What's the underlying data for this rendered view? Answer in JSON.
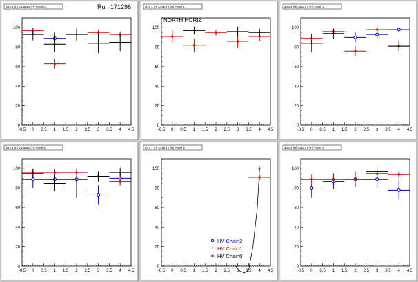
{
  "page": {
    "run_label": "Run 171296",
    "panel_label": "NORTH HORIZ"
  },
  "legend": [
    {
      "name": "HV Chain2",
      "color": "#0000cc",
      "marker": "circle"
    },
    {
      "name": "HV Chain1",
      "color": "#dd0000",
      "marker": "star"
    },
    {
      "name": "HV Chain0",
      "color": "#000000",
      "marker": "plus"
    }
  ],
  "chart_data": [
    {
      "type": "scatter",
      "title": "dcm 1 (H) Octant 0 (H) Panel 0",
      "xlim": [
        -0.5,
        4.5
      ],
      "ylim": [
        0,
        110
      ],
      "xticks": [
        "-0.5",
        "0",
        "0.5",
        "1",
        "1.5",
        "2",
        "2.5",
        "3",
        "3.5",
        "4",
        "4.5"
      ],
      "yticks": [
        "0",
        "20",
        "40",
        "60",
        "80",
        "100"
      ],
      "series": [
        {
          "key": "chain2",
          "points": [
            {
              "x": 1,
              "y": 89,
              "ex": 0.5,
              "ey": 6
            }
          ]
        },
        {
          "key": "chain1",
          "points": [
            {
              "x": 0,
              "y": 97,
              "ex": 0.5,
              "ey": 3
            },
            {
              "x": 1,
              "y": 63,
              "ex": 0.5,
              "ey": 5
            },
            {
              "x": 3,
              "y": 95,
              "ex": 0.5,
              "ey": 3
            },
            {
              "x": 4,
              "y": 93,
              "ex": 0.5,
              "ey": 3
            }
          ]
        },
        {
          "key": "chain0",
          "points": [
            {
              "x": 0,
              "y": 93,
              "ex": 0.5,
              "ey": 6
            },
            {
              "x": 1,
              "y": 83,
              "ex": 0.5,
              "ey": 8
            },
            {
              "x": 2,
              "y": 93,
              "ex": 0.5,
              "ey": 6
            },
            {
              "x": 3,
              "y": 84,
              "ex": 0.5,
              "ey": 10
            },
            {
              "x": 4,
              "y": 85,
              "ex": 0.5,
              "ey": 9
            }
          ]
        }
      ]
    },
    {
      "type": "scatter",
      "title": "dcm 1 (H) Octant 0 (H) Panel 1",
      "xlim": [
        -0.5,
        4.5
      ],
      "ylim": [
        0,
        110
      ],
      "xticks": [
        "-0.5",
        "0",
        "0.5",
        "1",
        "1.5",
        "2",
        "2.5",
        "3",
        "3.5",
        "4",
        "4.5"
      ],
      "yticks": [
        "0",
        "20",
        "40",
        "60",
        "80",
        "100"
      ],
      "series": [
        {
          "key": "chain2",
          "points": []
        },
        {
          "key": "chain1",
          "points": [
            {
              "x": 0,
              "y": 91,
              "ex": 0.5,
              "ey": 6
            },
            {
              "x": 1,
              "y": 82,
              "ex": 0.5,
              "ey": 7
            },
            {
              "x": 2,
              "y": 95,
              "ex": 0.5,
              "ey": 3
            },
            {
              "x": 3,
              "y": 86,
              "ex": 0.5,
              "ey": 7
            },
            {
              "x": 4,
              "y": 91,
              "ex": 0.5,
              "ey": 5
            }
          ]
        },
        {
          "key": "chain0",
          "points": [
            {
              "x": 1,
              "y": 97,
              "ex": 0.5,
              "ey": 4
            },
            {
              "x": 3,
              "y": 96,
              "ex": 0.5,
              "ey": 5
            },
            {
              "x": 4,
              "y": 95,
              "ex": 0.5,
              "ey": 4
            }
          ]
        }
      ]
    },
    {
      "type": "scatter",
      "title": "dcm 1 (H) Octant 0 (H) Panel 2",
      "xlim": [
        -0.5,
        4.5
      ],
      "ylim": [
        0,
        110
      ],
      "xticks": [
        "-0.5",
        "0",
        "0.5",
        "1",
        "1.5",
        "2",
        "2.5",
        "3",
        "3.5",
        "4",
        "4.5"
      ],
      "yticks": [
        "0",
        "20",
        "40",
        "60",
        "80",
        "100"
      ],
      "series": [
        {
          "key": "chain2",
          "points": [
            {
              "x": 2,
              "y": 90,
              "ex": 0.5,
              "ey": 5
            },
            {
              "x": 3,
              "y": 93,
              "ex": 0.5,
              "ey": 5
            },
            {
              "x": 4,
              "y": 98,
              "ex": 0.5,
              "ey": 2
            }
          ]
        },
        {
          "key": "chain1",
          "points": [
            {
              "x": 0,
              "y": 89,
              "ex": 0.5,
              "ey": 5
            },
            {
              "x": 1,
              "y": 96,
              "ex": 0.5,
              "ey": 3
            },
            {
              "x": 2,
              "y": 76,
              "ex": 0.5,
              "ey": 5
            },
            {
              "x": 3,
              "y": 98,
              "ex": 0.5,
              "ey": 3
            },
            {
              "x": 4,
              "y": 81,
              "ex": 0.5,
              "ey": 4
            }
          ]
        },
        {
          "key": "chain0",
          "points": [
            {
              "x": 0,
              "y": 84,
              "ex": 0.5,
              "ey": 9
            },
            {
              "x": 1,
              "y": 94,
              "ex": 0.5,
              "ey": 5
            },
            {
              "x": 4,
              "y": 81,
              "ex": 0.5,
              "ey": 5
            }
          ]
        }
      ]
    },
    {
      "type": "scatter",
      "title": "dcm 1 (H) Octant 0 (H) Panel 3",
      "xlim": [
        -0.5,
        4.5
      ],
      "ylim": [
        0,
        110
      ],
      "xticks": [
        "-0.5",
        "0",
        "0.5",
        "1",
        "1.5",
        "2",
        "2.5",
        "3",
        "3.5",
        "4",
        "4.5"
      ],
      "yticks": [
        "0",
        "20",
        "40",
        "60",
        "80",
        "100"
      ],
      "series": [
        {
          "key": "chain2",
          "points": [
            {
              "x": 0,
              "y": 89,
              "ex": 0.5,
              "ey": 9
            },
            {
              "x": 1,
              "y": 89,
              "ex": 0.5,
              "ey": 8
            },
            {
              "x": 2,
              "y": 89,
              "ex": 0.5,
              "ey": 8
            },
            {
              "x": 3,
              "y": 73,
              "ex": 0.5,
              "ey": 10
            },
            {
              "x": 4,
              "y": 90,
              "ex": 0.5,
              "ey": 7
            }
          ]
        },
        {
          "key": "chain1",
          "points": [
            {
              "x": 0,
              "y": 96,
              "ex": 0.5,
              "ey": 4
            },
            {
              "x": 1,
              "y": 96,
              "ex": 0.5,
              "ey": 4
            },
            {
              "x": 2,
              "y": 96,
              "ex": 0.5,
              "ey": 4
            },
            {
              "x": 3,
              "y": 92,
              "ex": 0.5,
              "ey": 5
            },
            {
              "x": 4,
              "y": 87,
              "ex": 0.5,
              "ey": 4
            }
          ]
        },
        {
          "key": "chain0",
          "points": [
            {
              "x": 0,
              "y": 95,
              "ex": 0.5,
              "ey": 5
            },
            {
              "x": 1,
              "y": 85,
              "ex": 0.5,
              "ey": 8
            },
            {
              "x": 2,
              "y": 80,
              "ex": 0.5,
              "ey": 10
            },
            {
              "x": 3,
              "y": 92,
              "ex": 0.5,
              "ey": 5
            },
            {
              "x": 4,
              "y": 96,
              "ex": 0.5,
              "ey": 5
            }
          ]
        }
      ]
    },
    {
      "type": "scatter",
      "title": "dcm 1 (H) Octant 0 (H) Panel 4",
      "xlim": [
        -0.5,
        4.5
      ],
      "ylim": [
        0,
        110
      ],
      "xticks": [
        "-0.5",
        "0",
        "0.5",
        "1",
        "1.5",
        "2",
        "2.5",
        "3",
        "3.5",
        "4",
        "4.5"
      ],
      "yticks": [
        "0",
        "20",
        "40",
        "60",
        "80",
        "100"
      ],
      "show_legend": true,
      "series": [
        {
          "key": "chain2",
          "points": []
        },
        {
          "key": "chain1",
          "points": [
            {
              "x": 4,
              "y": 91,
              "ex": 0.5,
              "ey": 3
            }
          ]
        },
        {
          "key": "chain0",
          "points": [
            {
              "x": 4,
              "y": 100,
              "ex": 0,
              "ey": 0
            }
          ]
        }
      ],
      "curve": [
        [
          2.9,
          0
        ],
        [
          3.1,
          -5
        ],
        [
          3.3,
          -7
        ],
        [
          3.5,
          -4
        ],
        [
          3.7,
          20
        ],
        [
          3.9,
          60
        ],
        [
          4.0,
          100
        ]
      ]
    },
    {
      "type": "scatter",
      "title": "dcm 1 (H) Octant 0 (H) Panel 5",
      "xlim": [
        -0.5,
        4.5
      ],
      "ylim": [
        0,
        110
      ],
      "xticks": [
        "-0.5",
        "0",
        "0.5",
        "1",
        "1.5",
        "2",
        "2.5",
        "3",
        "3.5",
        "4",
        "4.5"
      ],
      "yticks": [
        "0",
        "20",
        "40",
        "60",
        "80",
        "100"
      ],
      "series": [
        {
          "key": "chain2",
          "points": [
            {
              "x": 0,
              "y": 80,
              "ex": 0.5,
              "ey": 10
            },
            {
              "x": 1,
              "y": 87,
              "ex": 0.5,
              "ey": 8
            },
            {
              "x": 2,
              "y": 89,
              "ex": 0.5,
              "ey": 8
            },
            {
              "x": 3,
              "y": 89,
              "ex": 0.5,
              "ey": 9
            },
            {
              "x": 4,
              "y": 78,
              "ex": 0.5,
              "ey": 10
            }
          ]
        },
        {
          "key": "chain1",
          "points": [
            {
              "x": 0,
              "y": 89,
              "ex": 0.5,
              "ey": 5
            },
            {
              "x": 1,
              "y": 89,
              "ex": 0.5,
              "ey": 4
            },
            {
              "x": 2,
              "y": 89,
              "ex": 0.5,
              "ey": 4
            },
            {
              "x": 3,
              "y": 95,
              "ex": 0.5,
              "ey": 4
            },
            {
              "x": 4,
              "y": 94,
              "ex": 0.5,
              "ey": 4
            }
          ]
        },
        {
          "key": "chain0",
          "points": [
            {
              "x": 3,
              "y": 97,
              "ex": 0.5,
              "ey": 4
            }
          ]
        }
      ]
    }
  ]
}
